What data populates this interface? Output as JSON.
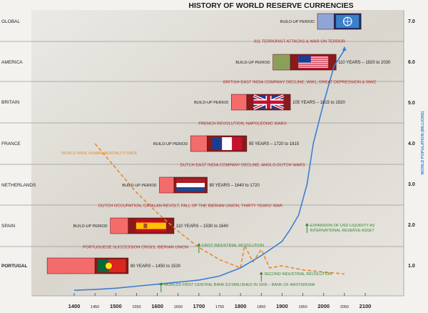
{
  "chart_data": {
    "type": "line",
    "title": "HISTORY OF WORLD RESERVE CURRENCIES",
    "x_ticks": [
      1400,
      1450,
      1500,
      1550,
      1600,
      1650,
      1700,
      1750,
      1800,
      1850,
      1900,
      1950,
      2000,
      2050,
      2100
    ],
    "xlim": [
      1400,
      2100
    ],
    "y_right_label": "WORLD POPULATION (BILLIONS)",
    "y_ticks": [
      "1.0",
      "2.0",
      "3.0",
      "4.0",
      "5.0",
      "6.0",
      "7.0"
    ],
    "y_tick_values": [
      1,
      2,
      3,
      4,
      5,
      6,
      7
    ],
    "ylim": [
      0.2,
      7.5
    ],
    "rows": [
      "GLOBAL",
      "AMERICA",
      "BRITAIN",
      "FRANCE",
      "NETHERLANDS",
      "SPAIN",
      "PORTUGAL"
    ],
    "population_series": {
      "x": [
        1400,
        1450,
        1500,
        1550,
        1600,
        1650,
        1700,
        1750,
        1800,
        1850,
        1900,
        1920,
        1940,
        1960,
        1975,
        2000,
        2025,
        2050
      ],
      "y": [
        0.4,
        0.42,
        0.45,
        0.5,
        0.55,
        0.6,
        0.65,
        0.75,
        0.95,
        1.25,
        1.6,
        1.9,
        2.25,
        3.0,
        4.0,
        5.0,
        5.9,
        6.3
      ],
      "color": "#3b7fd0"
    },
    "mortality_series": {
      "label": "WORLD WIDE HUMAN MORTALITY RATE",
      "x": [
        1450,
        1500,
        1550,
        1600,
        1650,
        1700,
        1750,
        1800,
        1810,
        1830,
        1850,
        1870,
        1900,
        1950,
        2000,
        2050
      ],
      "y": [
        4.0,
        3.4,
        2.8,
        2.3,
        1.85,
        1.45,
        1.15,
        0.95,
        1.5,
        1.1,
        1.4,
        0.95,
        1.0,
        0.9,
        0.85,
        0.8
      ],
      "color": "#e58a2e"
    },
    "currencies": [
      {
        "row": 0,
        "buildup_label": "BUILD-UP PERIOD",
        "buildup_start": 1985,
        "buildup_end": 2025,
        "flag": "un",
        "reign_start": 2025,
        "reign_end": 2090,
        "era_label": ""
      },
      {
        "row": 1,
        "buildup_label": "BUILD-UP PERIOD",
        "buildup_start": 1878,
        "buildup_end": 1920,
        "flag": "us",
        "reign_start": 1920,
        "reign_end": 2030,
        "era_label": "110 YEARS – 1920 to 2030",
        "event": "911 TERRORIST ATTACKS & WAR ON TERROR"
      },
      {
        "row": 2,
        "buildup_label": "BUILD-UP PERIOD",
        "buildup_start": 1778,
        "buildup_end": 1815,
        "flag": "uk",
        "reign_start": 1815,
        "reign_end": 1920,
        "era_label": "105 YEARS – 1815 to 1920",
        "event": "BRITISH EAST INDIA COMPANY DECLINE, WW1, GREAT DEPRESSION & WW2"
      },
      {
        "row": 3,
        "buildup_label": "BUILD-UP PERIOD",
        "buildup_start": 1680,
        "buildup_end": 1720,
        "flag": "fr",
        "reign_start": 1720,
        "reign_end": 1815,
        "era_label": "95 YEARS – 1720 to 1815",
        "event": "FRENCH REVOLUTION, NAPOLEONIC WARS"
      },
      {
        "row": 4,
        "buildup_label": "BUILD-UP PERIOD",
        "buildup_start": 1605,
        "buildup_end": 1640,
        "flag": "nl",
        "reign_start": 1640,
        "reign_end": 1720,
        "era_label": "80 YEARS – 1640 to 1720",
        "event": "DUTCH EAST INDIA COMPANY DECLINE, ANGLO-DUTCH WARS"
      },
      {
        "row": 5,
        "buildup_label": "BUILD-UP PERIOD",
        "buildup_start": 1487,
        "buildup_end": 1530,
        "flag": "es",
        "reign_start": 1530,
        "reign_end": 1640,
        "era_label": "110 YEARS – 1530 to 1640",
        "event": "DUTCH OCCUPATION, CATALAN REVOLT, FALL OF THE IBERIAN UNION, THIRTY YEARS' WAR"
      },
      {
        "row": 6,
        "buildup_label": "",
        "buildup_start": 1335,
        "buildup_end": 1450,
        "flag": "pt",
        "reign_start": 1450,
        "reign_end": 1530,
        "era_label": "80 YEARS – 1450 to 1530",
        "event": "PORTUGUESE SUCCESSION CRISIS, IBERIAN UNION"
      }
    ],
    "annotations": [
      {
        "text": "WORLDS FIRST CENTRAL BANK ESTABLISHED IN 1609 – BANK OF AMSTERDAM",
        "x": 1609,
        "color": "#2e8b2e"
      },
      {
        "text": "FIRST INDUSTRIAL REVOLUTION",
        "x": 1700,
        "color": "#2e8b2e"
      },
      {
        "text": "SECOND INDUSTRIAL REVOLUTION",
        "x": 1850,
        "color": "#2e8b2e"
      },
      {
        "text": "EXPANSION OF USD LIQUIDITY AS",
        "text2": "INTERNATIONAL RESERVE ASSET",
        "x": 1960,
        "color": "#2e8b2e"
      }
    ],
    "colors": {
      "event": "#b22222",
      "buildup": "#f46b6b",
      "reign": "#8b1a1a",
      "grid": "#9a9a9a",
      "panel": "#e7e5e1"
    }
  }
}
